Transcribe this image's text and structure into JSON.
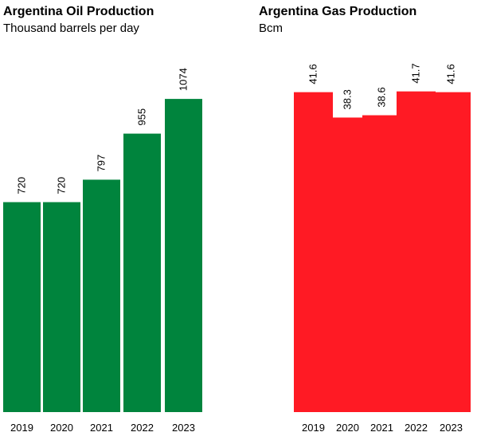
{
  "chart_data": [
    {
      "type": "bar",
      "title": "Argentina Oil Production",
      "subtitle": "Thousand barrels per day",
      "categories": [
        "2019",
        "2020",
        "2021",
        "2022",
        "2023"
      ],
      "values": [
        720,
        720,
        797,
        955,
        1074
      ],
      "value_labels": [
        "720",
        "720",
        "797",
        "955",
        "1074"
      ],
      "ylim": [
        0,
        1200
      ],
      "color": "#00843d",
      "grid": false,
      "legend": "none"
    },
    {
      "type": "bar",
      "title": "Argentina Gas Production",
      "subtitle": "Bcm",
      "categories": [
        "2019",
        "2020",
        "2021",
        "2022",
        "2023"
      ],
      "values": [
        41.6,
        38.3,
        38.6,
        41.7,
        41.6
      ],
      "value_labels": [
        "41.6",
        "38.3",
        "38.6",
        "41.7",
        "41.6"
      ],
      "ylim": [
        0,
        45.5
      ],
      "color": "#ff1a24",
      "grid": false,
      "legend": "none"
    }
  ]
}
